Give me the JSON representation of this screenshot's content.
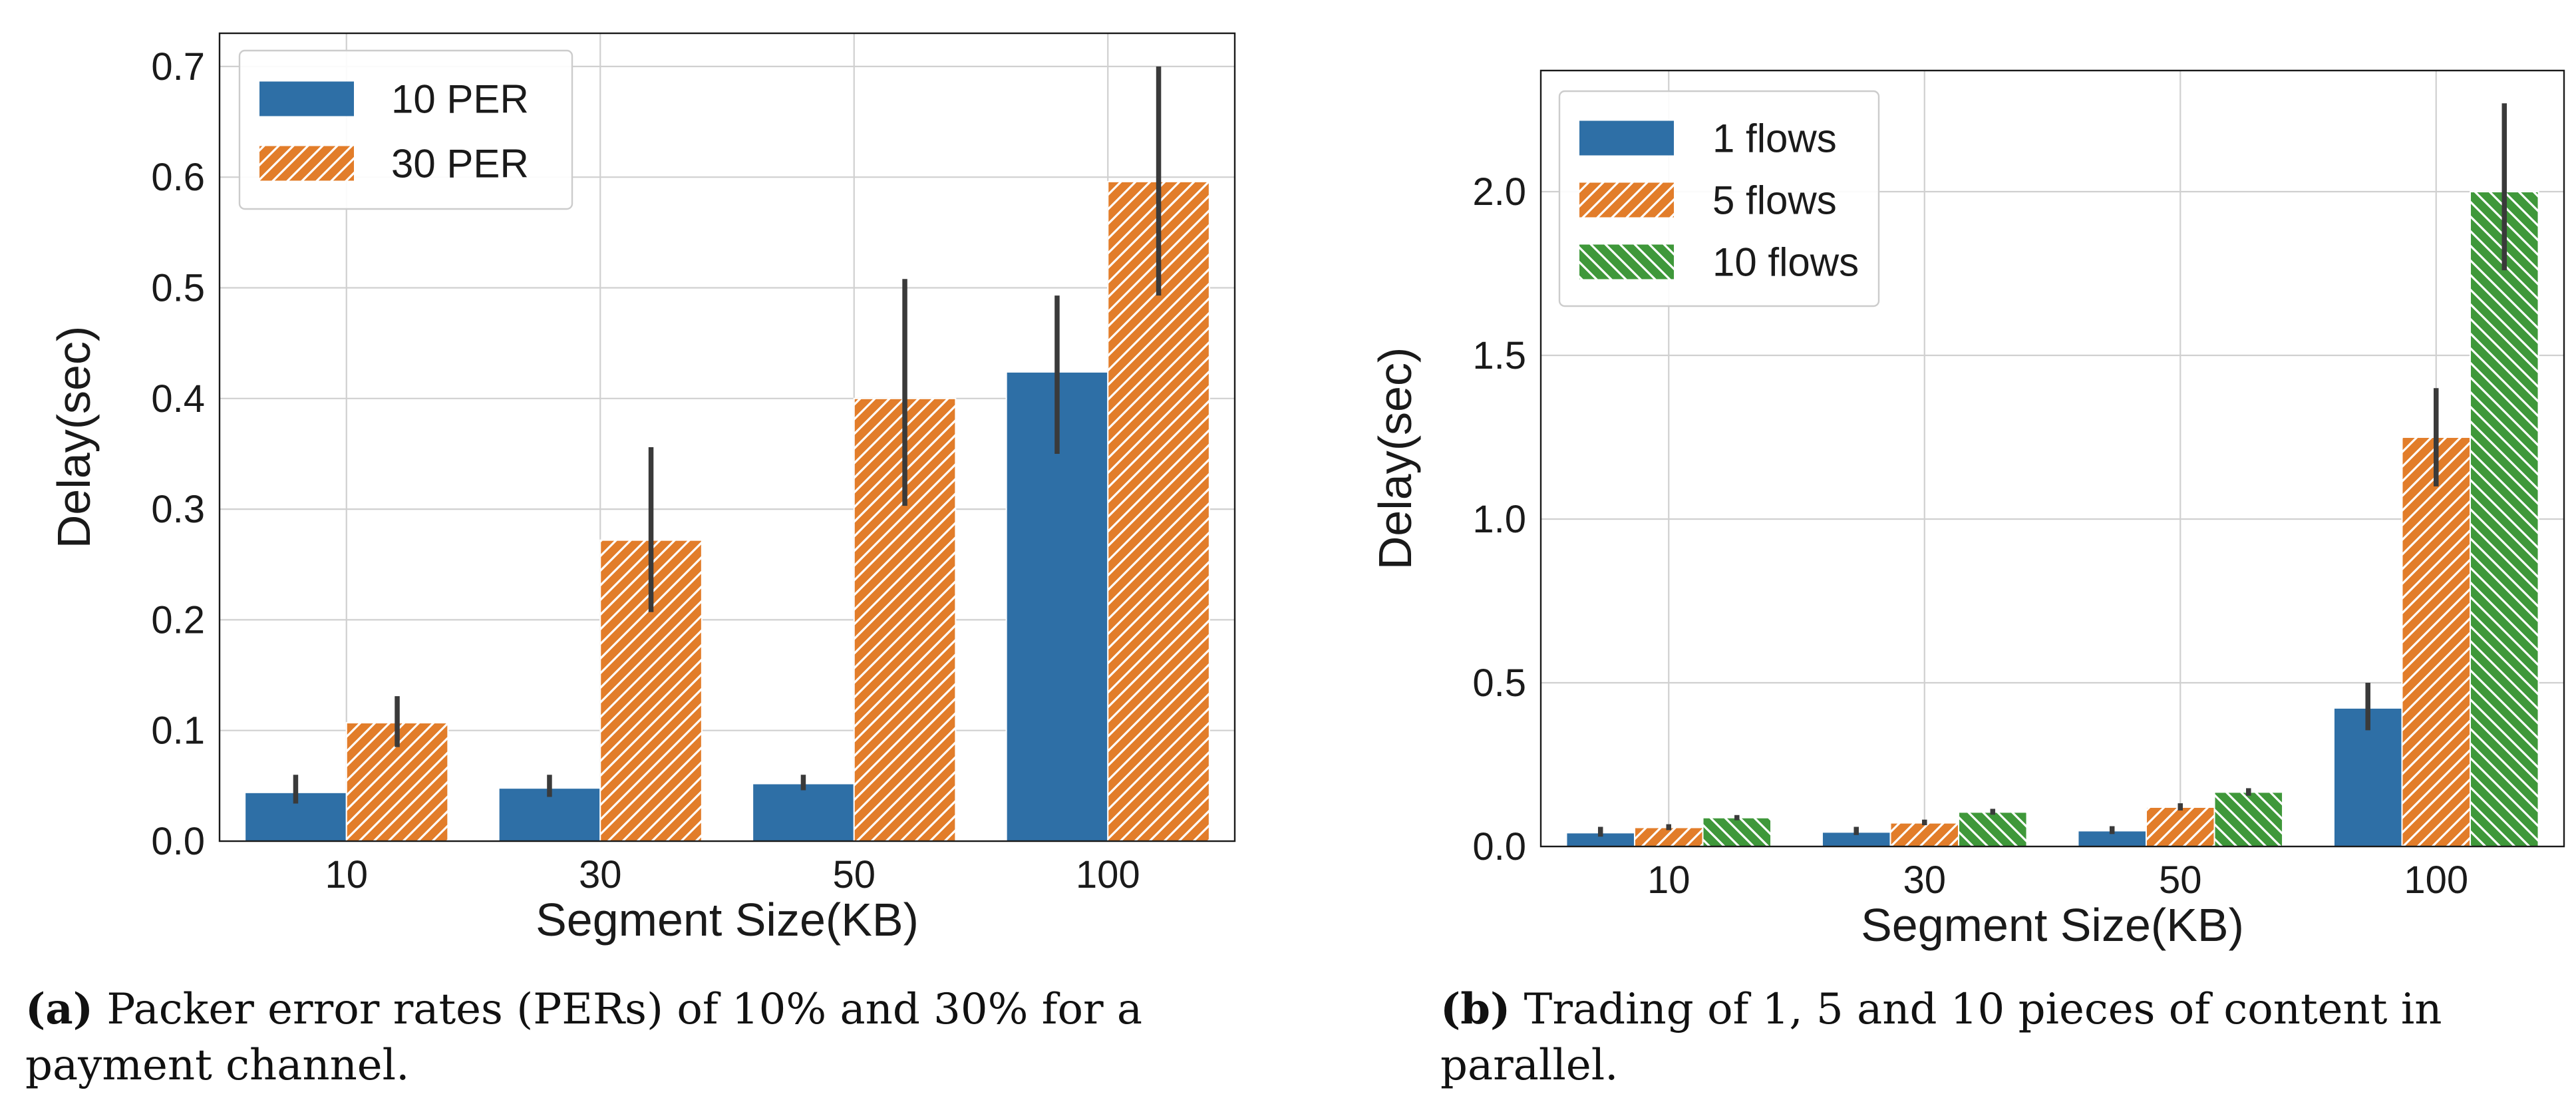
{
  "chart_data": [
    {
      "id": "a",
      "type": "bar",
      "xlabel": "Segment Size(KB)",
      "ylabel": "Delay(sec)",
      "ylim": [
        0,
        0.73
      ],
      "yticks": [
        0.0,
        0.1,
        0.2,
        0.3,
        0.4,
        0.5,
        0.6,
        0.7
      ],
      "ytick_labels": [
        "0.0",
        "0.1",
        "0.2",
        "0.3",
        "0.4",
        "0.5",
        "0.6",
        "0.7"
      ],
      "categories": [
        "10",
        "30",
        "50",
        "100"
      ],
      "legend_position": "top-left",
      "grid": true,
      "series": [
        {
          "name": "10 PER",
          "color": "#2e6fa6",
          "hatch": "none",
          "values": [
            0.044,
            0.048,
            0.052,
            0.424
          ],
          "err_low": [
            0.034,
            0.04,
            0.046,
            0.35
          ],
          "err_high": [
            0.06,
            0.06,
            0.06,
            0.493
          ]
        },
        {
          "name": "30 PER",
          "color": "#e27d2a",
          "hatch": "diag-right",
          "values": [
            0.107,
            0.272,
            0.4,
            0.596
          ],
          "err_low": [
            0.085,
            0.207,
            0.303,
            0.493
          ],
          "err_high": [
            0.131,
            0.356,
            0.508,
            0.7
          ]
        }
      ]
    },
    {
      "id": "b",
      "type": "bar",
      "xlabel": "Segment Size(KB)",
      "ylabel": "Delay(sec)",
      "ylim": [
        0,
        2.37
      ],
      "yticks": [
        0.0,
        0.5,
        1.0,
        1.5,
        2.0
      ],
      "ytick_labels": [
        "0.0",
        "0.5",
        "1.0",
        "1.5",
        "2.0"
      ],
      "categories": [
        "10",
        "30",
        "50",
        "100"
      ],
      "legend_position": "top-left",
      "grid": true,
      "series": [
        {
          "name": "1 flows",
          "color": "#2e6fa6",
          "hatch": "none",
          "values": [
            0.042,
            0.044,
            0.048,
            0.423
          ],
          "err_low": [
            0.03,
            0.035,
            0.038,
            0.355
          ],
          "err_high": [
            0.06,
            0.06,
            0.062,
            0.5
          ]
        },
        {
          "name": "5 flows",
          "color": "#e27d2a",
          "hatch": "diag-right",
          "values": [
            0.058,
            0.072,
            0.12,
            1.25
          ],
          "err_low": [
            0.05,
            0.065,
            0.11,
            1.1
          ],
          "err_high": [
            0.068,
            0.082,
            0.132,
            1.4
          ]
        },
        {
          "name": "10 flows",
          "color": "#3f983a",
          "hatch": "diag-left",
          "values": [
            0.088,
            0.105,
            0.166,
            2.0
          ],
          "err_low": [
            0.08,
            0.097,
            0.155,
            1.76
          ],
          "err_high": [
            0.096,
            0.115,
            0.178,
            2.27
          ]
        }
      ]
    }
  ],
  "captions": {
    "a": {
      "label": "(a)",
      "text": " Packer error rates (PERs) of 10% and 30% for a payment channel."
    },
    "b": {
      "label": "(b)",
      "text": " Trading of 1, 5 and 10 pieces of content in parallel."
    }
  }
}
